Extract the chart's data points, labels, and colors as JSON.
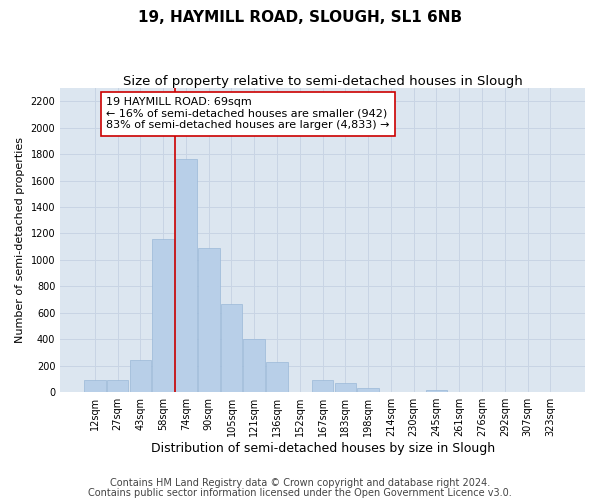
{
  "title": "19, HAYMILL ROAD, SLOUGH, SL1 6NB",
  "subtitle": "Size of property relative to semi-detached houses in Slough",
  "xlabel": "Distribution of semi-detached houses by size in Slough",
  "ylabel": "Number of semi-detached properties",
  "footnote1": "Contains HM Land Registry data © Crown copyright and database right 2024.",
  "footnote2": "Contains public sector information licensed under the Open Government Licence v3.0.",
  "annotation_line1": "19 HAYMILL ROAD: 69sqm",
  "annotation_line2": "← 16% of semi-detached houses are smaller (942)",
  "annotation_line3": "83% of semi-detached houses are larger (4,833) →",
  "bar_labels": [
    "12sqm",
    "27sqm",
    "43sqm",
    "58sqm",
    "74sqm",
    "90sqm",
    "105sqm",
    "121sqm",
    "136sqm",
    "152sqm",
    "167sqm",
    "183sqm",
    "198sqm",
    "214sqm",
    "230sqm",
    "245sqm",
    "261sqm",
    "276sqm",
    "292sqm",
    "307sqm",
    "323sqm"
  ],
  "bar_values": [
    90,
    90,
    240,
    1160,
    1760,
    1090,
    670,
    400,
    230,
    0,
    90,
    70,
    35,
    0,
    0,
    20,
    0,
    0,
    0,
    0,
    0
  ],
  "bar_color": "#b8cfe8",
  "bar_edge_color": "#9ab8d8",
  "red_line_index": 4,
  "red_line_color": "#cc0000",
  "ylim_max": 2300,
  "yticks": [
    0,
    200,
    400,
    600,
    800,
    1000,
    1200,
    1400,
    1600,
    1800,
    2000,
    2200
  ],
  "grid_color": "#c8d4e4",
  "background_color": "#dce6f0",
  "title_fontsize": 11,
  "subtitle_fontsize": 9.5,
  "annotation_fontsize": 8,
  "tick_fontsize": 7,
  "xlabel_fontsize": 9,
  "ylabel_fontsize": 8,
  "footnote_fontsize": 7
}
